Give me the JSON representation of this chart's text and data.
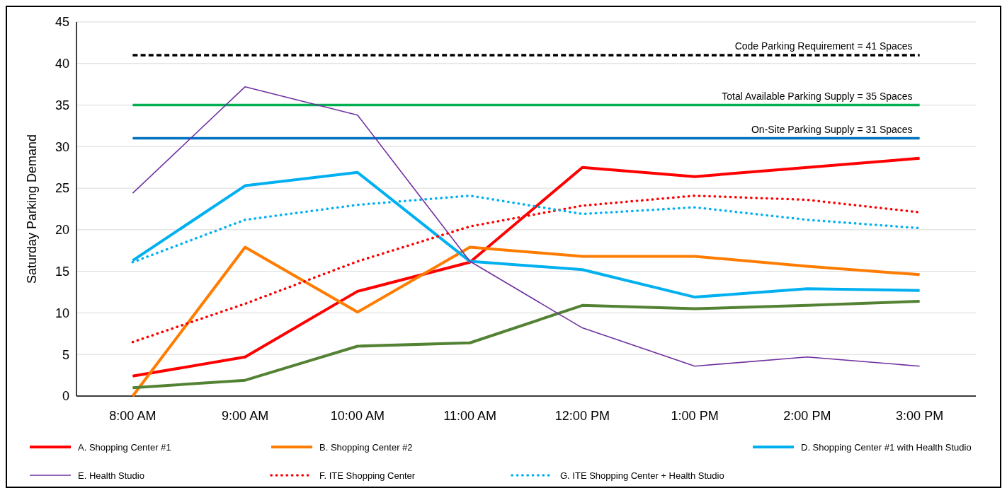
{
  "chart_data": {
    "type": "line",
    "ylabel": "Saturday Parking Demand",
    "categories": [
      "8:00 AM",
      "9:00 AM",
      "10:00 AM",
      "11:00 AM",
      "12:00 PM",
      "1:00 PM",
      "2:00 PM",
      "3:00 PM"
    ],
    "ylim": [
      0,
      45
    ],
    "yticks": [
      0,
      5,
      10,
      15,
      20,
      25,
      30,
      35,
      40,
      45
    ],
    "grid": "y",
    "legend": "bottom",
    "marker": "none",
    "series": [
      {
        "name": "A.  Shopping Center #1",
        "color": "#ff0000",
        "line_style": "solid",
        "values": [
          2.4,
          4.7,
          12.6,
          16.1,
          27.5,
          26.4,
          27.5,
          28.6
        ]
      },
      {
        "name": "B.  Shopping Center #2",
        "color": "#ff7c00",
        "line_style": "solid",
        "values": [
          0,
          17.9,
          10.1,
          17.9,
          16.8,
          16.8,
          15.6,
          14.6
        ]
      },
      {
        "color": "#548235",
        "line_style": "solid",
        "values": [
          1.0,
          1.9,
          6.0,
          6.4,
          10.9,
          10.5,
          10.9,
          11.4
        ]
      },
      {
        "name": "D.  Shopping Center #1 with Health Studio",
        "color": "#00b0f0",
        "line_style": "solid",
        "values": [
          16.3,
          25.3,
          26.9,
          16.2,
          15.2,
          11.9,
          12.9,
          12.7
        ]
      },
      {
        "name": "E.  Health Studio",
        "color": "#7030a0",
        "line_style": "solid",
        "values": [
          24.4,
          37.2,
          33.8,
          16.2,
          8.2,
          3.6,
          4.7,
          3.6
        ]
      },
      {
        "name": "F.  ITE Shopping Center",
        "color": "#ff0000",
        "line_style": "dotted",
        "values": [
          6.5,
          11.1,
          16.2,
          20.4,
          22.9,
          24.1,
          23.6,
          22.1
        ]
      },
      {
        "name": "G.  ITE Shopping Center + Health Studio",
        "color": "#00b0f0",
        "line_style": "dotted",
        "values": [
          16.1,
          21.2,
          23.0,
          24.1,
          21.9,
          22.7,
          21.2,
          20.2
        ]
      }
    ],
    "ref_lines": [
      {
        "axis": "y",
        "value": 41,
        "label": "Code Parking Requirement = 41 Spaces",
        "color": "#000000",
        "line_style": "dashed"
      },
      {
        "axis": "y",
        "value": 35,
        "label": "Total Available Parking Supply = 35 Spaces",
        "color": "#00b050",
        "line_style": "solid"
      },
      {
        "axis": "y",
        "value": 31,
        "label": "On-Site Parking Supply = 31 Spaces",
        "color": "#0070c0",
        "line_style": "solid"
      }
    ]
  }
}
